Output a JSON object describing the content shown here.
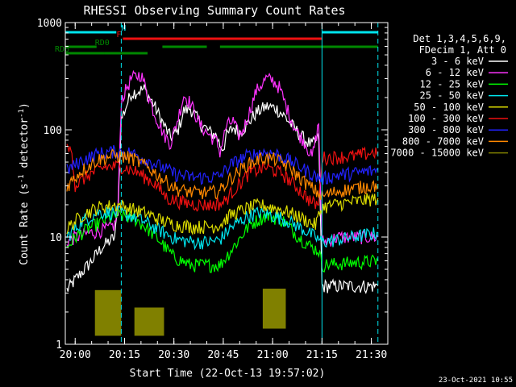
{
  "chart_data": {
    "type": "line",
    "title": "RHESSI Observing Summary Count Rates",
    "xlabel": "Start Time (22-Oct-13 19:57:02)",
    "ylabel": "Count Rate (s⁻¹ detector⁻¹)",
    "ylabel_parts": {
      "pre": "Count Rate (s",
      "sup1": "-1",
      "mid": " detector",
      "sup2": "-1",
      "post": ")"
    },
    "y_scale": "log",
    "xlim": [
      "19:57",
      "21:35"
    ],
    "ylim": [
      1,
      1000
    ],
    "x_ticks": [
      "20:00",
      "20:15",
      "20:30",
      "20:45",
      "21:00",
      "21:15",
      "21:30"
    ],
    "y_ticks": [
      "1",
      "10",
      "100",
      "1000"
    ],
    "legend_header": [
      "Det 1,3,4,5,6,9,",
      "FDecim 1, Att 0"
    ],
    "timestamp": "23-Oct-2021 10:55",
    "status_bars": [
      {
        "name": "N",
        "color": "#00e5ee",
        "spans": [
          [
            "19:57",
            "20:12.5"
          ],
          [
            "21:15",
            "21:32"
          ]
        ]
      },
      {
        "name": "F",
        "color": "#ee1111",
        "spans": [
          [
            "20:14.5",
            "21:15"
          ]
        ]
      },
      {
        "name": "RD0",
        "color": "#008800",
        "spans": [
          [
            "19:57",
            "20:06.5"
          ],
          [
            "20:26.5",
            "20:40"
          ],
          [
            "20:44",
            "21:15"
          ],
          [
            "21:15",
            "21:32"
          ]
        ]
      },
      {
        "name": "RD6",
        "color": "#008800",
        "spans": [
          [
            "19:57",
            "20:09"
          ],
          [
            "20:09",
            "20:22"
          ]
        ]
      }
    ],
    "saa_lines": [
      "19:57",
      "20:14",
      "21:15",
      "21:32"
    ],
    "series": [
      {
        "name": "3 - 6 keV",
        "color": "#ffffff",
        "noise": 0.3,
        "points": [
          [
            "19:57.5",
            3.2
          ],
          [
            "20:00",
            4
          ],
          [
            "20:05",
            6
          ],
          [
            "20:08",
            8
          ],
          [
            "20:12",
            10
          ],
          [
            "20:13",
            18
          ],
          [
            "20:14",
            125
          ],
          [
            "20:17",
            220
          ],
          [
            "20:21",
            240
          ],
          [
            "20:24",
            170
          ],
          [
            "20:27",
            110
          ],
          [
            "20:29",
            85
          ],
          [
            "20:31",
            95
          ],
          [
            "20:33",
            150
          ],
          [
            "20:35",
            160
          ],
          [
            "20:38",
            115
          ],
          [
            "20:41",
            95
          ],
          [
            "20:43",
            88
          ],
          [
            "20:44",
            72
          ],
          [
            "20:45",
            68
          ],
          [
            "20:46",
            88
          ],
          [
            "20:48",
            105
          ],
          [
            "20:50",
            95
          ],
          [
            "20:52",
            110
          ],
          [
            "20:55",
            145
          ],
          [
            "20:58",
            165
          ],
          [
            "21:01",
            160
          ],
          [
            "21:04",
            130
          ],
          [
            "21:07",
            100
          ],
          [
            "21:10",
            80
          ],
          [
            "21:12",
            72
          ],
          [
            "21:14",
            85
          ],
          [
            "21:15",
            3.5
          ],
          [
            "21:32",
            3.5
          ]
        ]
      },
      {
        "name": "6 - 12 keV",
        "color": "#ff33ff",
        "noise": 0.3,
        "points": [
          [
            "19:57.5",
            9
          ],
          [
            "20:00",
            10
          ],
          [
            "20:05",
            11
          ],
          [
            "20:10",
            12
          ],
          [
            "20:12",
            13
          ],
          [
            "20:13",
            19
          ],
          [
            "20:14",
            190
          ],
          [
            "20:17",
            300
          ],
          [
            "20:20",
            330
          ],
          [
            "20:22",
            220
          ],
          [
            "20:24",
            145
          ],
          [
            "20:27",
            90
          ],
          [
            "20:29",
            75
          ],
          [
            "20:31",
            120
          ],
          [
            "20:33",
            210
          ],
          [
            "20:35",
            180
          ],
          [
            "20:38",
            110
          ],
          [
            "20:41",
            88
          ],
          [
            "20:43",
            78
          ],
          [
            "20:44",
            62
          ],
          [
            "20:46",
            110
          ],
          [
            "20:48",
            120
          ],
          [
            "20:50",
            85
          ],
          [
            "20:52",
            120
          ],
          [
            "20:55",
            230
          ],
          [
            "20:58",
            300
          ],
          [
            "21:00",
            290
          ],
          [
            "21:02",
            250
          ],
          [
            "21:04",
            170
          ],
          [
            "21:07",
            100
          ],
          [
            "21:10",
            75
          ],
          [
            "21:12",
            55
          ],
          [
            "21:14",
            115
          ],
          [
            "21:15",
            9
          ],
          [
            "21:20",
            10
          ],
          [
            "21:32",
            10
          ]
        ]
      },
      {
        "name": "12 - 25 keV",
        "color": "#00ff00",
        "noise": 0.3,
        "points": [
          [
            "19:57.5",
            8
          ],
          [
            "20:00",
            10
          ],
          [
            "20:04",
            12
          ],
          [
            "20:08",
            14
          ],
          [
            "20:13",
            16
          ],
          [
            "20:18",
            15
          ],
          [
            "20:22",
            12
          ],
          [
            "20:26",
            9
          ],
          [
            "20:30",
            6.5
          ],
          [
            "20:35",
            5.5
          ],
          [
            "20:40",
            5.5
          ],
          [
            "20:44",
            5.5
          ],
          [
            "20:48",
            8
          ],
          [
            "20:53",
            13
          ],
          [
            "20:58",
            16
          ],
          [
            "21:03",
            14.5
          ],
          [
            "21:08",
            10
          ],
          [
            "21:12",
            8
          ],
          [
            "21:14",
            7.5
          ],
          [
            "21:15",
            5.5
          ],
          [
            "21:32",
            6
          ]
        ]
      },
      {
        "name": "25 - 50 keV",
        "color": "#00e5ee",
        "noise": 0.3,
        "points": [
          [
            "19:57.5",
            10
          ],
          [
            "20:02",
            14
          ],
          [
            "20:07",
            17
          ],
          [
            "20:13",
            17
          ],
          [
            "20:18",
            15.5
          ],
          [
            "20:22",
            13.5
          ],
          [
            "20:27",
            11
          ],
          [
            "20:31",
            9.5
          ],
          [
            "20:36",
            9
          ],
          [
            "20:41",
            9
          ],
          [
            "20:44",
            9.5
          ],
          [
            "20:47",
            12
          ],
          [
            "20:52",
            15.5
          ],
          [
            "20:56",
            17
          ],
          [
            "21:00",
            16
          ],
          [
            "21:04",
            14.5
          ],
          [
            "21:09",
            12
          ],
          [
            "21:13",
            10
          ],
          [
            "21:15",
            9
          ],
          [
            "21:20",
            9.5
          ],
          [
            "21:32",
            11
          ]
        ]
      },
      {
        "name": "50 - 100 keV",
        "color": "#dddd00",
        "noise": 0.3,
        "points": [
          [
            "19:57.5",
            12
          ],
          [
            "20:02",
            16
          ],
          [
            "20:07",
            19
          ],
          [
            "20:13",
            20
          ],
          [
            "20:18",
            18
          ],
          [
            "20:22",
            16.5
          ],
          [
            "20:27",
            14
          ],
          [
            "20:31",
            13
          ],
          [
            "20:36",
            12.5
          ],
          [
            "20:41",
            12.5
          ],
          [
            "20:44",
            13
          ],
          [
            "20:47",
            16
          ],
          [
            "20:52",
            18.5
          ],
          [
            "20:56",
            20
          ],
          [
            "21:00",
            19
          ],
          [
            "21:04",
            17.5
          ],
          [
            "21:09",
            15
          ],
          [
            "21:13",
            13
          ],
          [
            "21:15",
            19
          ],
          [
            "21:20",
            20.5
          ],
          [
            "21:32",
            23
          ]
        ]
      },
      {
        "name": "100 - 300 keV",
        "color": "#ee1111",
        "noise": 0.3,
        "points": [
          [
            "19:57.5",
            65
          ],
          [
            "19:59",
            65
          ],
          [
            "20:00",
            30
          ],
          [
            "20:04",
            38
          ],
          [
            "20:09",
            45
          ],
          [
            "20:14",
            46
          ],
          [
            "20:19",
            40
          ],
          [
            "20:24",
            32
          ],
          [
            "20:28",
            23
          ],
          [
            "20:33",
            21
          ],
          [
            "20:38",
            20
          ],
          [
            "20:42",
            20
          ],
          [
            "20:45",
            21
          ],
          [
            "20:48",
            27
          ],
          [
            "20:53",
            40
          ],
          [
            "20:58",
            45
          ],
          [
            "21:03",
            39
          ],
          [
            "21:08",
            28
          ],
          [
            "21:12",
            21
          ],
          [
            "21:14",
            20
          ],
          [
            "21:15",
            55
          ],
          [
            "21:25",
            57
          ],
          [
            "21:32",
            63
          ]
        ]
      },
      {
        "name": "300 - 800 keV",
        "color": "#2222ff",
        "noise": 0.3,
        "points": [
          [
            "19:57.5",
            42
          ],
          [
            "20:02",
            52
          ],
          [
            "20:07",
            60
          ],
          [
            "20:12",
            63
          ],
          [
            "20:17",
            61
          ],
          [
            "20:22",
            52
          ],
          [
            "20:27",
            44
          ],
          [
            "20:31",
            38
          ],
          [
            "20:36",
            36
          ],
          [
            "20:41",
            36
          ],
          [
            "20:44",
            37
          ],
          [
            "20:47",
            47
          ],
          [
            "20:52",
            57
          ],
          [
            "20:57",
            62
          ],
          [
            "21:01",
            60
          ],
          [
            "21:05",
            52
          ],
          [
            "21:09",
            44
          ],
          [
            "21:13",
            37
          ],
          [
            "21:15",
            35
          ],
          [
            "21:20",
            38
          ],
          [
            "21:32",
            42
          ]
        ]
      },
      {
        "name": "800 - 7000 keV",
        "color": "#ff8800",
        "noise": 0.3,
        "points": [
          [
            "19:57.5",
            30
          ],
          [
            "20:02",
            42
          ],
          [
            "20:07",
            53
          ],
          [
            "20:12",
            58
          ],
          [
            "20:17",
            55
          ],
          [
            "20:22",
            45
          ],
          [
            "20:27",
            34
          ],
          [
            "20:31",
            28
          ],
          [
            "20:36",
            26
          ],
          [
            "20:41",
            26
          ],
          [
            "20:44",
            27
          ],
          [
            "20:47",
            35
          ],
          [
            "20:52",
            47
          ],
          [
            "20:57",
            55
          ],
          [
            "21:01",
            53
          ],
          [
            "21:05",
            45
          ],
          [
            "21:09",
            34
          ],
          [
            "21:13",
            27
          ],
          [
            "21:15",
            24
          ],
          [
            "21:20",
            27
          ],
          [
            "21:32",
            31
          ]
        ]
      },
      {
        "name": "7000 - 15000 keV",
        "color": "#808000",
        "noise": 0.3,
        "points": []
      }
    ],
    "blocks_7000": [
      [
        "20:06",
        "20:14",
        1.2,
        3.2
      ],
      [
        "20:18",
        "20:27",
        1.2,
        2.2
      ],
      [
        "20:57",
        "21:04",
        1.4,
        3.3
      ]
    ]
  }
}
